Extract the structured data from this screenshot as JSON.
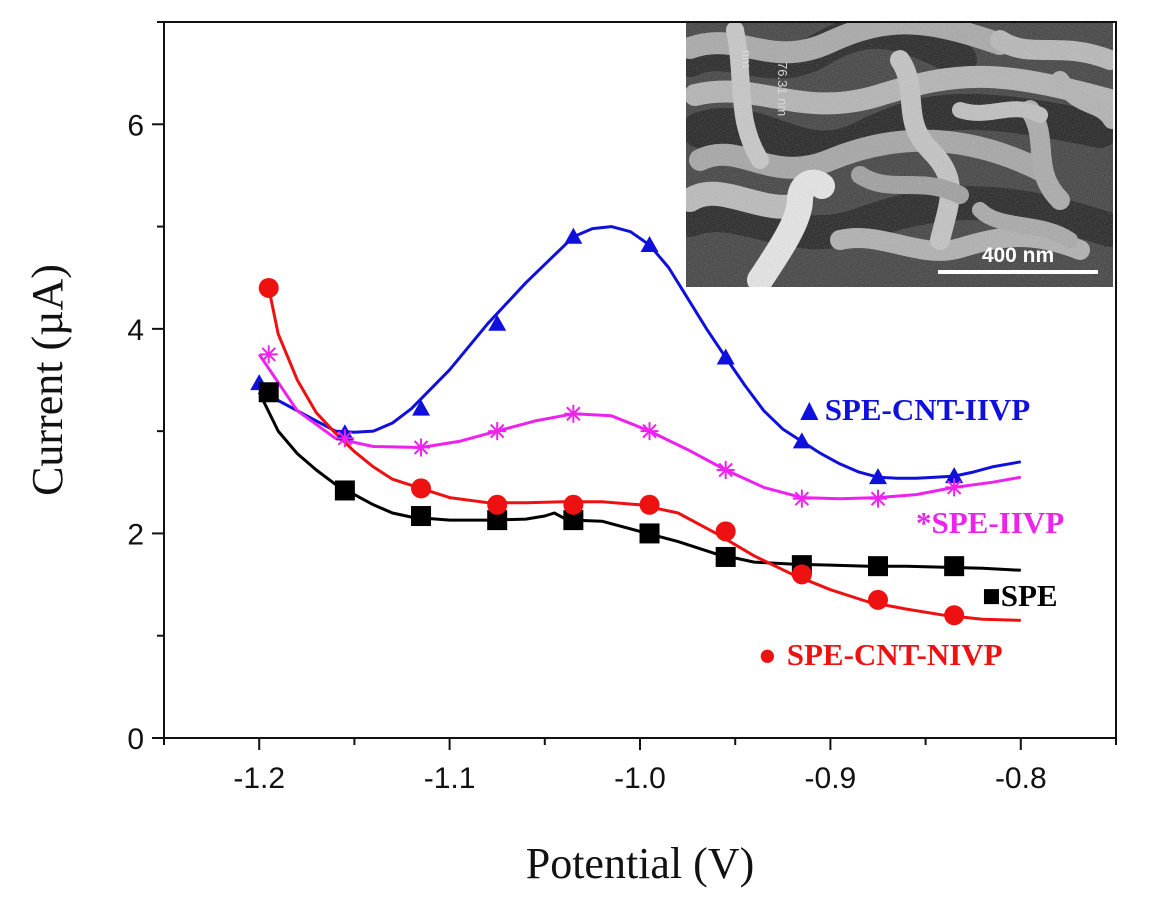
{
  "chart_data": {
    "type": "line",
    "title": "",
    "xlabel": "Potential (V)",
    "ylabel": "Current (µA)",
    "xlim": [
      -1.25,
      -0.75
    ],
    "ylim": [
      0,
      7
    ],
    "x_ticks": [
      -1.2,
      -1.1,
      -1.0,
      -0.9,
      -0.8
    ],
    "x_tick_labels": [
      "-1.2",
      "-1.1",
      "-1.0",
      "-0.9",
      "-0.8"
    ],
    "y_ticks": [
      0,
      2,
      4,
      6
    ],
    "y_tick_labels": [
      "0",
      "2",
      "4",
      "6"
    ],
    "grid": false,
    "series": [
      {
        "name": "SPE-CNT-IIVP",
        "legend_label": "SPE-CNT-IIVP",
        "legend_glyph": "▲",
        "marker": "triangle",
        "color": "#1010dd",
        "x": [
          -1.2,
          -1.19,
          -1.18,
          -1.17,
          -1.16,
          -1.15,
          -1.14,
          -1.13,
          -1.12,
          -1.1,
          -1.08,
          -1.06,
          -1.045,
          -1.035,
          -1.025,
          -1.015,
          -1.005,
          -0.995,
          -0.985,
          -0.975,
          -0.965,
          -0.955,
          -0.945,
          -0.935,
          -0.925,
          -0.915,
          -0.905,
          -0.895,
          -0.885,
          -0.875,
          -0.865,
          -0.855,
          -0.845,
          -0.835,
          -0.825,
          -0.815,
          -0.8
        ],
        "y": [
          3.45,
          3.3,
          3.2,
          3.1,
          3.0,
          2.99,
          3.0,
          3.08,
          3.22,
          3.6,
          4.05,
          4.45,
          4.72,
          4.9,
          4.98,
          5.0,
          4.95,
          4.82,
          4.6,
          4.3,
          4.0,
          3.72,
          3.45,
          3.2,
          3.02,
          2.9,
          2.78,
          2.68,
          2.6,
          2.55,
          2.54,
          2.54,
          2.55,
          2.56,
          2.6,
          2.65,
          2.7
        ],
        "marker_x": [
          -1.2,
          -1.155,
          -1.115,
          -1.075,
          -1.035,
          -0.995,
          -0.955,
          -0.915,
          -0.875,
          -0.835
        ],
        "marker_y": [
          3.47,
          2.98,
          3.22,
          4.05,
          4.9,
          4.82,
          3.72,
          2.9,
          2.55,
          2.56
        ]
      },
      {
        "name": "SPE-IIVP",
        "legend_label": "*SPE-IIVP",
        "legend_glyph": "",
        "marker": "asterisk",
        "color": "#ee22ee",
        "x": [
          -1.2,
          -1.18,
          -1.16,
          -1.14,
          -1.115,
          -1.095,
          -1.075,
          -1.055,
          -1.035,
          -1.015,
          -0.995,
          -0.975,
          -0.955,
          -0.935,
          -0.915,
          -0.895,
          -0.875,
          -0.855,
          -0.835,
          -0.815,
          -0.8
        ],
        "y": [
          3.75,
          3.2,
          2.93,
          2.85,
          2.84,
          2.9,
          3.0,
          3.1,
          3.17,
          3.15,
          3.0,
          2.82,
          2.62,
          2.45,
          2.35,
          2.34,
          2.35,
          2.38,
          2.45,
          2.5,
          2.55
        ],
        "marker_x": [
          -1.195,
          -1.155,
          -1.115,
          -1.075,
          -1.035,
          -0.995,
          -0.955,
          -0.915,
          -0.875,
          -0.835
        ],
        "marker_y": [
          3.75,
          2.93,
          2.84,
          3.0,
          3.17,
          3.0,
          2.62,
          2.34,
          2.34,
          2.45
        ]
      },
      {
        "name": "SPE",
        "legend_label": "SPE",
        "legend_glyph": "■",
        "marker": "square",
        "color": "#000000",
        "x": [
          -1.2,
          -1.19,
          -1.18,
          -1.17,
          -1.16,
          -1.15,
          -1.14,
          -1.13,
          -1.12,
          -1.1,
          -1.08,
          -1.06,
          -1.05,
          -1.045,
          -1.04,
          -1.035,
          -1.02,
          -1.0,
          -0.98,
          -0.96,
          -0.94,
          -0.92,
          -0.9,
          -0.88,
          -0.86,
          -0.84,
          -0.82,
          -0.8
        ],
        "y": [
          3.38,
          3.0,
          2.78,
          2.62,
          2.48,
          2.38,
          2.28,
          2.2,
          2.16,
          2.13,
          2.13,
          2.14,
          2.17,
          2.2,
          2.15,
          2.13,
          2.12,
          2.02,
          1.92,
          1.8,
          1.72,
          1.7,
          1.69,
          1.68,
          1.68,
          1.67,
          1.66,
          1.64
        ],
        "marker_x": [
          -1.195,
          -1.155,
          -1.115,
          -1.075,
          -1.035,
          -0.995,
          -0.955,
          -0.915,
          -0.875,
          -0.835
        ],
        "marker_y": [
          3.38,
          2.42,
          2.17,
          2.13,
          2.13,
          2.0,
          1.77,
          1.69,
          1.68,
          1.68
        ]
      },
      {
        "name": "SPE-CNT-NIVP",
        "legend_label": "SPE-CNT-NIVP",
        "legend_glyph": "●",
        "marker": "circle",
        "color": "#ee1111",
        "x": [
          -1.195,
          -1.19,
          -1.18,
          -1.17,
          -1.16,
          -1.15,
          -1.14,
          -1.13,
          -1.115,
          -1.1,
          -1.08,
          -1.06,
          -1.04,
          -1.02,
          -1.0,
          -0.98,
          -0.96,
          -0.94,
          -0.92,
          -0.9,
          -0.88,
          -0.86,
          -0.84,
          -0.82,
          -0.8
        ],
        "y": [
          4.4,
          3.95,
          3.5,
          3.18,
          2.98,
          2.8,
          2.65,
          2.53,
          2.44,
          2.35,
          2.3,
          2.3,
          2.31,
          2.31,
          2.28,
          2.2,
          2.0,
          1.78,
          1.6,
          1.45,
          1.33,
          1.26,
          1.2,
          1.16,
          1.15
        ],
        "marker_x": [
          -1.195,
          -1.115,
          -1.075,
          -1.035,
          -0.995,
          -0.955,
          -0.915,
          -0.875,
          -0.835
        ],
        "marker_y": [
          4.4,
          2.44,
          2.28,
          2.28,
          2.28,
          2.02,
          1.6,
          1.35,
          1.2
        ]
      }
    ],
    "annotations": [
      {
        "text": "400 nm",
        "kind": "inset-scale-bar"
      },
      {
        "text": "76.31 nm",
        "kind": "inset-measurement"
      },
      {
        "text": "nm",
        "kind": "inset-measurement-partial"
      }
    ]
  }
}
